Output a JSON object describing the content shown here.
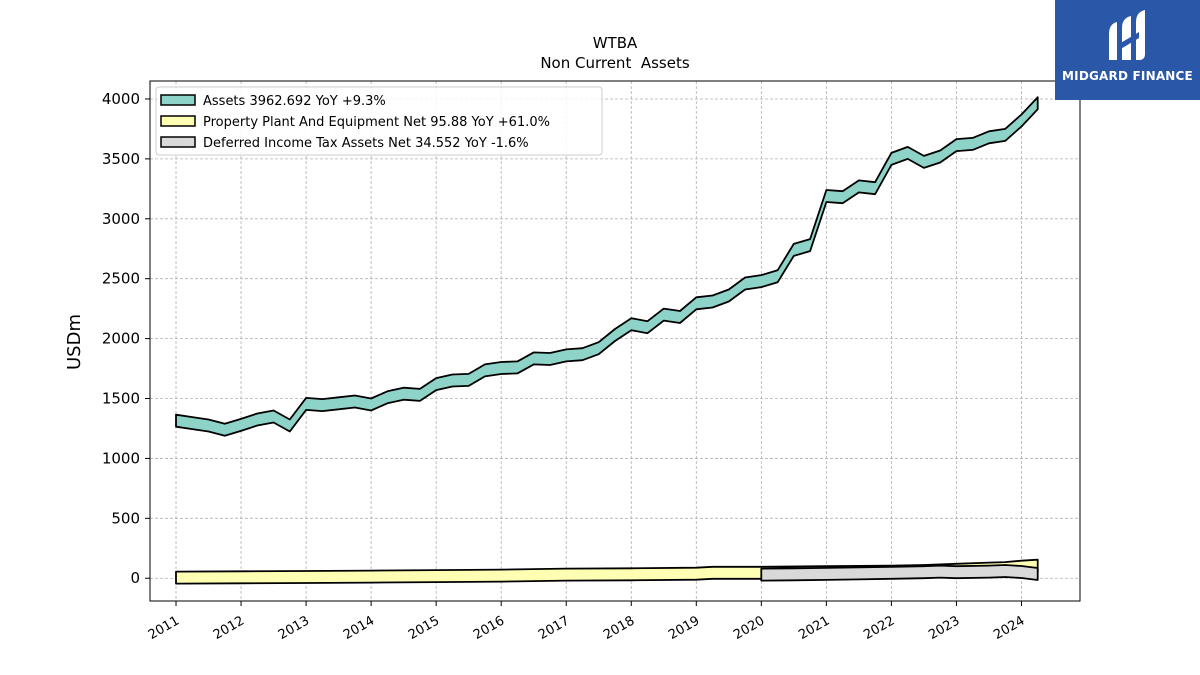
{
  "brand": {
    "name": "MIDGARD FINANCE",
    "bg_color": "#2b57a8"
  },
  "chart_data": {
    "type": "area",
    "title": "WTBA",
    "subtitle": "Non Current  Assets",
    "ylabel": "USDm",
    "xlabel": "",
    "ylim": [
      -190,
      4150
    ],
    "xlim": [
      2010.6,
      2024.9
    ],
    "yticks": [
      0,
      500,
      1000,
      1500,
      2000,
      2500,
      3000,
      3500,
      4000
    ],
    "xticks": [
      "2011",
      "2012",
      "2013",
      "2014",
      "2015",
      "2016",
      "2017",
      "2018",
      "2019",
      "2020",
      "2021",
      "2022",
      "2023",
      "2024"
    ],
    "grid": true,
    "legend_position": "top-left",
    "series": [
      {
        "name": "Assets  3962.692 YoY +9.3%",
        "color": "#8dd3c7",
        "x": [
          2011.0,
          2011.25,
          2011.5,
          2011.75,
          2012.0,
          2012.25,
          2012.5,
          2012.75,
          2013.0,
          2013.25,
          2013.5,
          2013.75,
          2014.0,
          2014.25,
          2014.5,
          2014.75,
          2015.0,
          2015.25,
          2015.5,
          2015.75,
          2016.0,
          2016.25,
          2016.5,
          2016.75,
          2017.0,
          2017.25,
          2017.5,
          2017.75,
          2018.0,
          2018.25,
          2018.5,
          2018.75,
          2019.0,
          2019.25,
          2019.5,
          2019.75,
          2020.0,
          2020.25,
          2020.5,
          2020.75,
          2021.0,
          2021.25,
          2021.5,
          2021.75,
          2022.0,
          2022.25,
          2022.5,
          2022.75,
          2023.0,
          2023.25,
          2023.5,
          2023.75,
          2024.0,
          2024.25
        ],
        "values": [
          1315,
          1295,
          1275,
          1240,
          1280,
          1325,
          1350,
          1275,
          1455,
          1445,
          1460,
          1475,
          1450,
          1510,
          1540,
          1530,
          1620,
          1650,
          1655,
          1735,
          1755,
          1760,
          1835,
          1830,
          1860,
          1870,
          1920,
          2030,
          2120,
          2095,
          2200,
          2180,
          2295,
          2310,
          2360,
          2460,
          2480,
          2520,
          2740,
          2780,
          3190,
          3180,
          3270,
          3255,
          3500,
          3550,
          3475,
          3520,
          3615,
          3625,
          3680,
          3700,
          3820,
          3965
        ]
      },
      {
        "name": "Property Plant And Equipment Net  95.88 YoY +61.0%",
        "color": "#ffffb3",
        "x": [
          2011.0,
          2012.0,
          2013.0,
          2014.0,
          2015.0,
          2016.0,
          2017.0,
          2018.0,
          2019.0,
          2019.25,
          2020.0,
          2021.0,
          2022.0,
          2022.5,
          2023.0,
          2023.5,
          2023.75,
          2024.0,
          2024.25
        ],
        "values": [
          5,
          8,
          10,
          14,
          18,
          22,
          30,
          33,
          38,
          45,
          45,
          50,
          55,
          60,
          70,
          80,
          85,
          96,
          105
        ]
      },
      {
        "name": "Deferred Income Tax Assets Net  34.552 YoY -1.6%",
        "color": "#d9d9d9",
        "x": [
          2020.0,
          2020.5,
          2021.0,
          2021.5,
          2022.0,
          2022.5,
          2022.75,
          2023.0,
          2023.5,
          2023.75,
          2024.0,
          2024.25
        ],
        "values": [
          30,
          33,
          36,
          40,
          45,
          50,
          55,
          50,
          55,
          60,
          52,
          35
        ]
      }
    ]
  }
}
